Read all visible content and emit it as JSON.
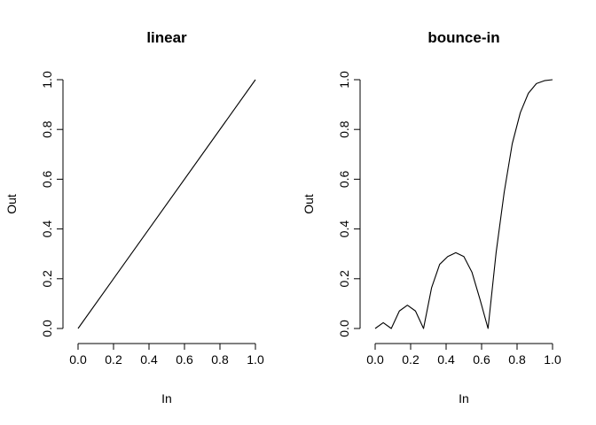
{
  "chart_data": [
    {
      "type": "line",
      "title": "linear",
      "xlabel": "In",
      "ylabel": "Out",
      "xlim": [
        0,
        1
      ],
      "ylim": [
        0,
        1
      ],
      "xticks": [
        "0.0",
        "0.2",
        "0.4",
        "0.6",
        "0.8",
        "1.0"
      ],
      "yticks": [
        "0.0",
        "0.2",
        "0.4",
        "0.6",
        "0.8",
        "1.0"
      ],
      "grid": false,
      "series": [
        {
          "x": [
            0,
            1
          ],
          "y": [
            0,
            1
          ]
        }
      ]
    },
    {
      "type": "line",
      "title": "bounce-in",
      "xlabel": "In",
      "ylabel": "Out",
      "xlim": [
        0,
        1
      ],
      "ylim": [
        0,
        1
      ],
      "xticks": [
        "0.0",
        "0.2",
        "0.4",
        "0.6",
        "0.8",
        "1.0"
      ],
      "yticks": [
        "0.0",
        "0.2",
        "0.4",
        "0.6",
        "0.8",
        "1.0"
      ],
      "grid": false,
      "series": [
        {
          "x": [
            0,
            0.0455,
            0.0909,
            0.1364,
            0.1818,
            0.2273,
            0.2727,
            0.3182,
            0.3636,
            0.4091,
            0.4545,
            0.5,
            0.5455,
            0.5909,
            0.6364,
            0.6818,
            0.7273,
            0.7727,
            0.8182,
            0.8636,
            0.9091,
            0.9545,
            1
          ],
          "y": [
            0,
            0.0234,
            0,
            0.0703,
            0.0938,
            0.0703,
            0,
            0.1641,
            0.2578,
            0.2891,
            0.3047,
            0.2891,
            0.2266,
            0.1172,
            0,
            0.3047,
            0.5469,
            0.7422,
            0.8672,
            0.9453,
            0.9844,
            0.9961,
            1
          ]
        }
      ]
    }
  ]
}
